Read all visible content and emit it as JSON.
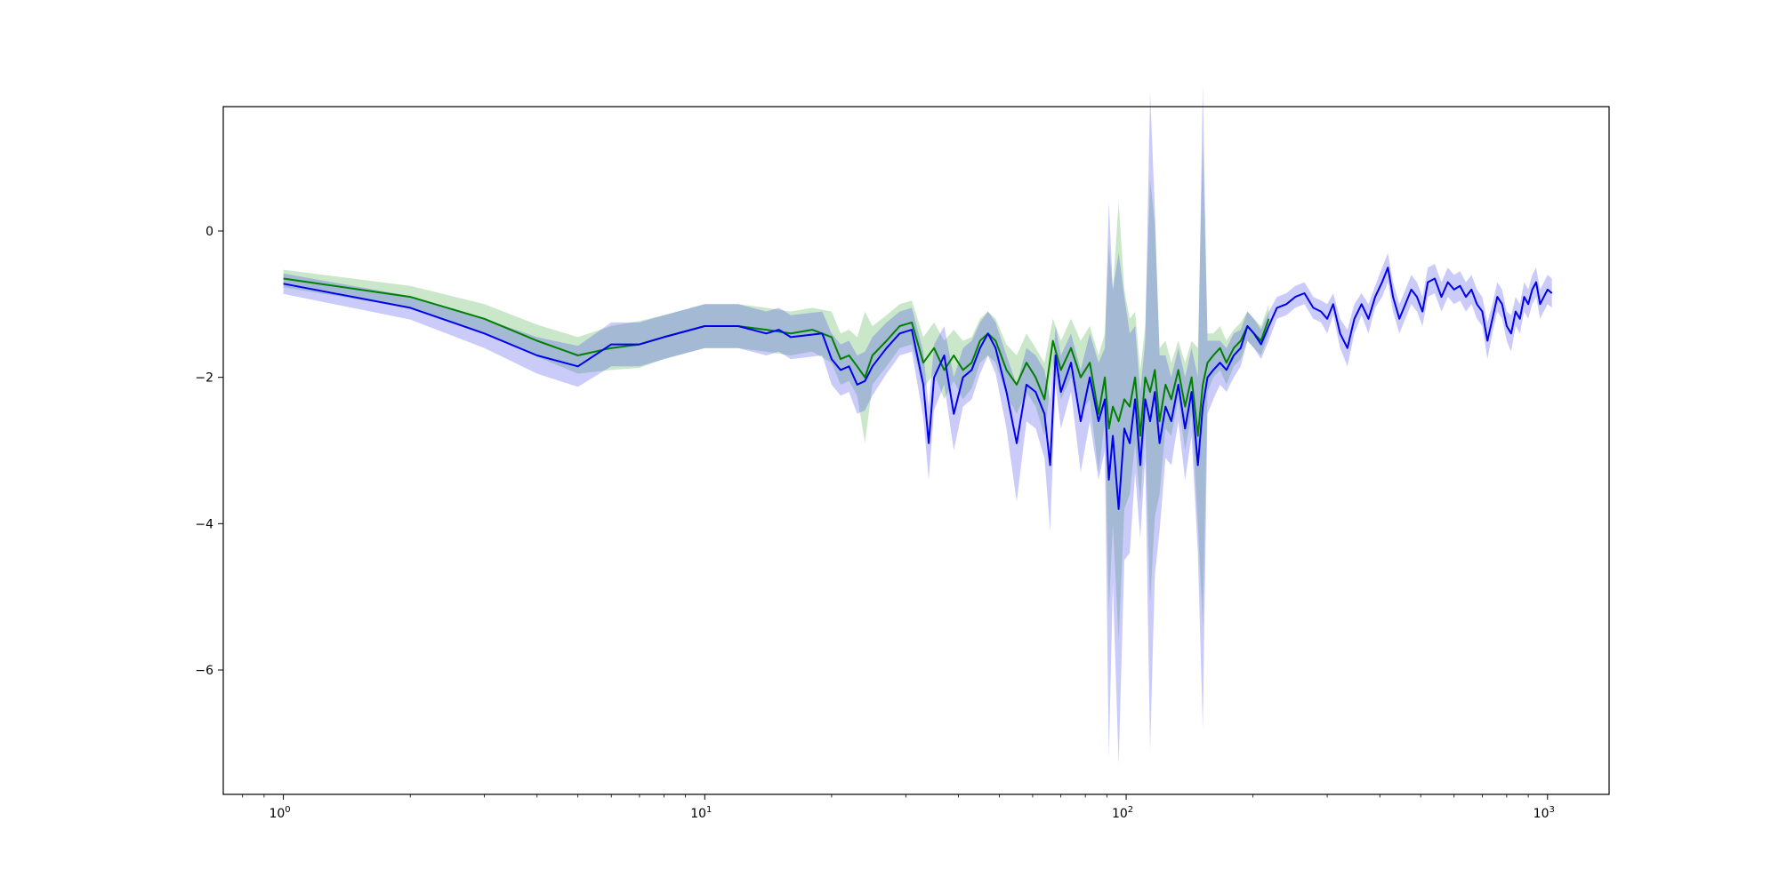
{
  "chart_data": {
    "type": "line",
    "title": "",
    "xlabel": "",
    "ylabel": "",
    "x_scale": "log",
    "xlim": [
      0.72,
      1400
    ],
    "ylim": [
      -7.7,
      1.7
    ],
    "grid": false,
    "legend": "none",
    "x_ticks": [
      {
        "value": 1,
        "base": "10",
        "exp": "0"
      },
      {
        "value": 10,
        "base": "10",
        "exp": "1"
      },
      {
        "value": 100,
        "base": "10",
        "exp": "2"
      },
      {
        "value": 1000,
        "base": "10",
        "exp": "3"
      }
    ],
    "y_ticks": [
      {
        "value": 0,
        "label": "0"
      },
      {
        "value": -2,
        "label": "−2"
      },
      {
        "value": -4,
        "label": "−4"
      },
      {
        "value": -6,
        "label": "−6"
      }
    ],
    "series": [
      {
        "color": "#008000",
        "band_color": "#2ca02c",
        "points": [
          [
            1,
            -0.65,
            0.12
          ],
          [
            2,
            -0.9,
            0.15
          ],
          [
            3,
            -1.2,
            0.2
          ],
          [
            4,
            -1.5,
            0.22
          ],
          [
            5,
            -1.7,
            0.25
          ],
          [
            6,
            -1.6,
            0.3
          ],
          [
            7,
            -1.55,
            0.32
          ],
          [
            8,
            -1.45,
            0.3
          ],
          [
            10,
            -1.3,
            0.3
          ],
          [
            12,
            -1.3,
            0.3
          ],
          [
            14,
            -1.35,
            0.3
          ],
          [
            16,
            -1.4,
            0.3
          ],
          [
            18,
            -1.35,
            0.3
          ],
          [
            20,
            -1.45,
            0.35
          ],
          [
            21,
            -1.75,
            0.35
          ],
          [
            22,
            -1.7,
            0.35
          ],
          [
            23,
            -1.85,
            0.4
          ],
          [
            24,
            -2.0,
            0.9
          ],
          [
            25,
            -1.7,
            0.4
          ],
          [
            27,
            -1.5,
            0.35
          ],
          [
            29,
            -1.3,
            0.3
          ],
          [
            31,
            -1.25,
            0.3
          ],
          [
            33,
            -1.8,
            0.35
          ],
          [
            35,
            -1.6,
            0.35
          ],
          [
            37,
            -1.9,
            0.4
          ],
          [
            39,
            -1.7,
            0.35
          ],
          [
            41,
            -1.9,
            0.4
          ],
          [
            43,
            -1.8,
            0.35
          ],
          [
            45,
            -1.5,
            0.3
          ],
          [
            47,
            -1.4,
            0.3
          ],
          [
            49,
            -1.5,
            0.3
          ],
          [
            52,
            -1.9,
            0.35
          ],
          [
            55,
            -2.1,
            0.4
          ],
          [
            58,
            -1.8,
            0.4
          ],
          [
            61,
            -2.0,
            0.4
          ],
          [
            64,
            -2.3,
            0.5
          ],
          [
            67,
            -1.5,
            0.3
          ],
          [
            70,
            -1.9,
            0.4
          ],
          [
            74,
            -1.6,
            0.4
          ],
          [
            78,
            -2.0,
            0.5
          ],
          [
            82,
            -1.8,
            0.5
          ],
          [
            86,
            -2.5,
            0.8
          ],
          [
            89,
            -2.0,
            0.6
          ],
          [
            91,
            -2.7,
            2.5
          ],
          [
            93,
            -2.4,
            1.6
          ],
          [
            96,
            -2.6,
            3.0
          ],
          [
            99,
            -2.3,
            1.5
          ],
          [
            102,
            -2.4,
            1.2
          ],
          [
            105,
            -2.0,
            0.9
          ],
          [
            108,
            -2.8,
            0.9
          ],
          [
            111,
            -2.0,
            0.7
          ],
          [
            114,
            -2.2,
            2.9
          ],
          [
            117,
            -1.9,
            2.0
          ],
          [
            120,
            -2.6,
            1.0
          ],
          [
            124,
            -2.1,
            0.6
          ],
          [
            128,
            -2.3,
            0.5
          ],
          [
            133,
            -1.9,
            0.4
          ],
          [
            138,
            -2.4,
            0.6
          ],
          [
            143,
            -2.0,
            0.5
          ],
          [
            148,
            -2.8,
            1.2
          ],
          [
            152,
            -2.1,
            3.3
          ],
          [
            156,
            -1.8,
            0.4
          ],
          [
            161,
            -1.7,
            0.3
          ],
          [
            167,
            -1.6,
            0.3
          ],
          [
            173,
            -1.8,
            0.3
          ],
          [
            180,
            -1.6,
            0.25
          ],
          [
            187,
            -1.5,
            0.25
          ],
          [
            194,
            -1.3,
            0.2
          ],
          [
            201,
            -1.4,
            0.2
          ],
          [
            209,
            -1.5,
            0.2
          ],
          [
            218,
            -1.2,
            0.2
          ]
        ]
      },
      {
        "color": "#0000ee",
        "band_color": "#4444ee",
        "points": [
          [
            1,
            -0.72,
            0.14
          ],
          [
            2,
            -1.05,
            0.16
          ],
          [
            3,
            -1.4,
            0.2
          ],
          [
            4,
            -1.7,
            0.25
          ],
          [
            5,
            -1.85,
            0.28
          ],
          [
            6,
            -1.55,
            0.3
          ],
          [
            7,
            -1.55,
            0.3
          ],
          [
            8,
            -1.45,
            0.3
          ],
          [
            10,
            -1.3,
            0.3
          ],
          [
            12,
            -1.3,
            0.3
          ],
          [
            14,
            -1.4,
            0.3
          ],
          [
            15,
            -1.35,
            0.3
          ],
          [
            16,
            -1.45,
            0.3
          ],
          [
            19,
            -1.4,
            0.3
          ],
          [
            20,
            -1.75,
            0.35
          ],
          [
            21,
            -1.9,
            0.35
          ],
          [
            22,
            -1.85,
            0.35
          ],
          [
            23,
            -2.1,
            0.4
          ],
          [
            24,
            -2.05,
            0.4
          ],
          [
            25,
            -1.85,
            0.4
          ],
          [
            27,
            -1.6,
            0.35
          ],
          [
            29,
            -1.4,
            0.3
          ],
          [
            31,
            -1.35,
            0.3
          ],
          [
            33,
            -2.1,
            0.45
          ],
          [
            34,
            -2.9,
            0.5
          ],
          [
            35,
            -2.0,
            0.45
          ],
          [
            37,
            -1.7,
            0.4
          ],
          [
            39,
            -2.5,
            0.5
          ],
          [
            41,
            -2.0,
            0.4
          ],
          [
            43,
            -1.9,
            0.4
          ],
          [
            45,
            -1.6,
            0.35
          ],
          [
            47,
            -1.4,
            0.3
          ],
          [
            49,
            -1.6,
            0.35
          ],
          [
            52,
            -2.2,
            0.5
          ],
          [
            55,
            -2.9,
            0.8
          ],
          [
            58,
            -2.1,
            0.5
          ],
          [
            61,
            -2.2,
            0.5
          ],
          [
            64,
            -2.5,
            0.6
          ],
          [
            66,
            -3.2,
            0.9
          ],
          [
            68,
            -1.7,
            0.4
          ],
          [
            70,
            -2.2,
            0.5
          ],
          [
            74,
            -1.8,
            0.4
          ],
          [
            78,
            -2.6,
            0.7
          ],
          [
            82,
            -2.0,
            0.6
          ],
          [
            86,
            -2.6,
            0.8
          ],
          [
            89,
            -2.3,
            0.7
          ],
          [
            91,
            -3.4,
            3.8
          ],
          [
            93,
            -2.8,
            2.0
          ],
          [
            96,
            -3.8,
            3.5
          ],
          [
            99,
            -2.7,
            1.8
          ],
          [
            102,
            -2.9,
            1.5
          ],
          [
            105,
            -2.3,
            1.0
          ],
          [
            108,
            -3.2,
            1.0
          ],
          [
            111,
            -2.3,
            0.8
          ],
          [
            114,
            -2.6,
            4.5
          ],
          [
            117,
            -2.2,
            2.5
          ],
          [
            120,
            -2.9,
            1.2
          ],
          [
            124,
            -2.4,
            0.7
          ],
          [
            128,
            -2.6,
            0.6
          ],
          [
            133,
            -2.1,
            0.5
          ],
          [
            138,
            -2.7,
            0.7
          ],
          [
            143,
            -2.2,
            0.6
          ],
          [
            148,
            -3.2,
            1.2
          ],
          [
            152,
            -2.4,
            4.4
          ],
          [
            156,
            -2.0,
            0.5
          ],
          [
            161,
            -1.9,
            0.4
          ],
          [
            167,
            -1.8,
            0.3
          ],
          [
            173,
            -1.9,
            0.3
          ],
          [
            180,
            -1.7,
            0.3
          ],
          [
            187,
            -1.6,
            0.25
          ],
          [
            194,
            -1.3,
            0.2
          ],
          [
            201,
            -1.4,
            0.2
          ],
          [
            209,
            -1.55,
            0.2
          ],
          [
            218,
            -1.3,
            0.2
          ],
          [
            228,
            -1.05,
            0.15
          ],
          [
            240,
            -1.0,
            0.15
          ],
          [
            252,
            -0.9,
            0.15
          ],
          [
            265,
            -0.85,
            0.15
          ],
          [
            278,
            -1.05,
            0.15
          ],
          [
            290,
            -1.1,
            0.15
          ],
          [
            300,
            -1.2,
            0.2
          ],
          [
            310,
            -1.0,
            0.15
          ],
          [
            322,
            -1.4,
            0.2
          ],
          [
            335,
            -1.6,
            0.25
          ],
          [
            348,
            -1.2,
            0.2
          ],
          [
            362,
            -1.0,
            0.15
          ],
          [
            376,
            -1.2,
            0.2
          ],
          [
            390,
            -0.9,
            0.15
          ],
          [
            405,
            -0.7,
            0.2
          ],
          [
            418,
            -0.5,
            0.2
          ],
          [
            430,
            -0.9,
            0.2
          ],
          [
            445,
            -1.2,
            0.2
          ],
          [
            460,
            -1.0,
            0.2
          ],
          [
            475,
            -0.8,
            0.2
          ],
          [
            490,
            -0.9,
            0.2
          ],
          [
            505,
            -1.1,
            0.2
          ],
          [
            520,
            -0.7,
            0.2
          ],
          [
            540,
            -0.65,
            0.2
          ],
          [
            560,
            -0.9,
            0.2
          ],
          [
            580,
            -0.7,
            0.2
          ],
          [
            600,
            -0.8,
            0.2
          ],
          [
            620,
            -0.75,
            0.2
          ],
          [
            640,
            -0.9,
            0.2
          ],
          [
            660,
            -0.8,
            0.2
          ],
          [
            680,
            -1.0,
            0.2
          ],
          [
            700,
            -1.1,
            0.2
          ],
          [
            720,
            -1.5,
            0.25
          ],
          [
            740,
            -1.2,
            0.2
          ],
          [
            760,
            -0.9,
            0.2
          ],
          [
            780,
            -1.0,
            0.2
          ],
          [
            800,
            -1.3,
            0.2
          ],
          [
            820,
            -1.4,
            0.25
          ],
          [
            840,
            -1.1,
            0.2
          ],
          [
            860,
            -1.2,
            0.2
          ],
          [
            880,
            -0.9,
            0.2
          ],
          [
            900,
            -1.0,
            0.2
          ],
          [
            920,
            -0.8,
            0.2
          ],
          [
            940,
            -0.7,
            0.2
          ],
          [
            960,
            -1.0,
            0.2
          ],
          [
            980,
            -0.9,
            0.2
          ],
          [
            1000,
            -0.8,
            0.2
          ],
          [
            1024,
            -0.85,
            0.2
          ]
        ]
      }
    ]
  }
}
